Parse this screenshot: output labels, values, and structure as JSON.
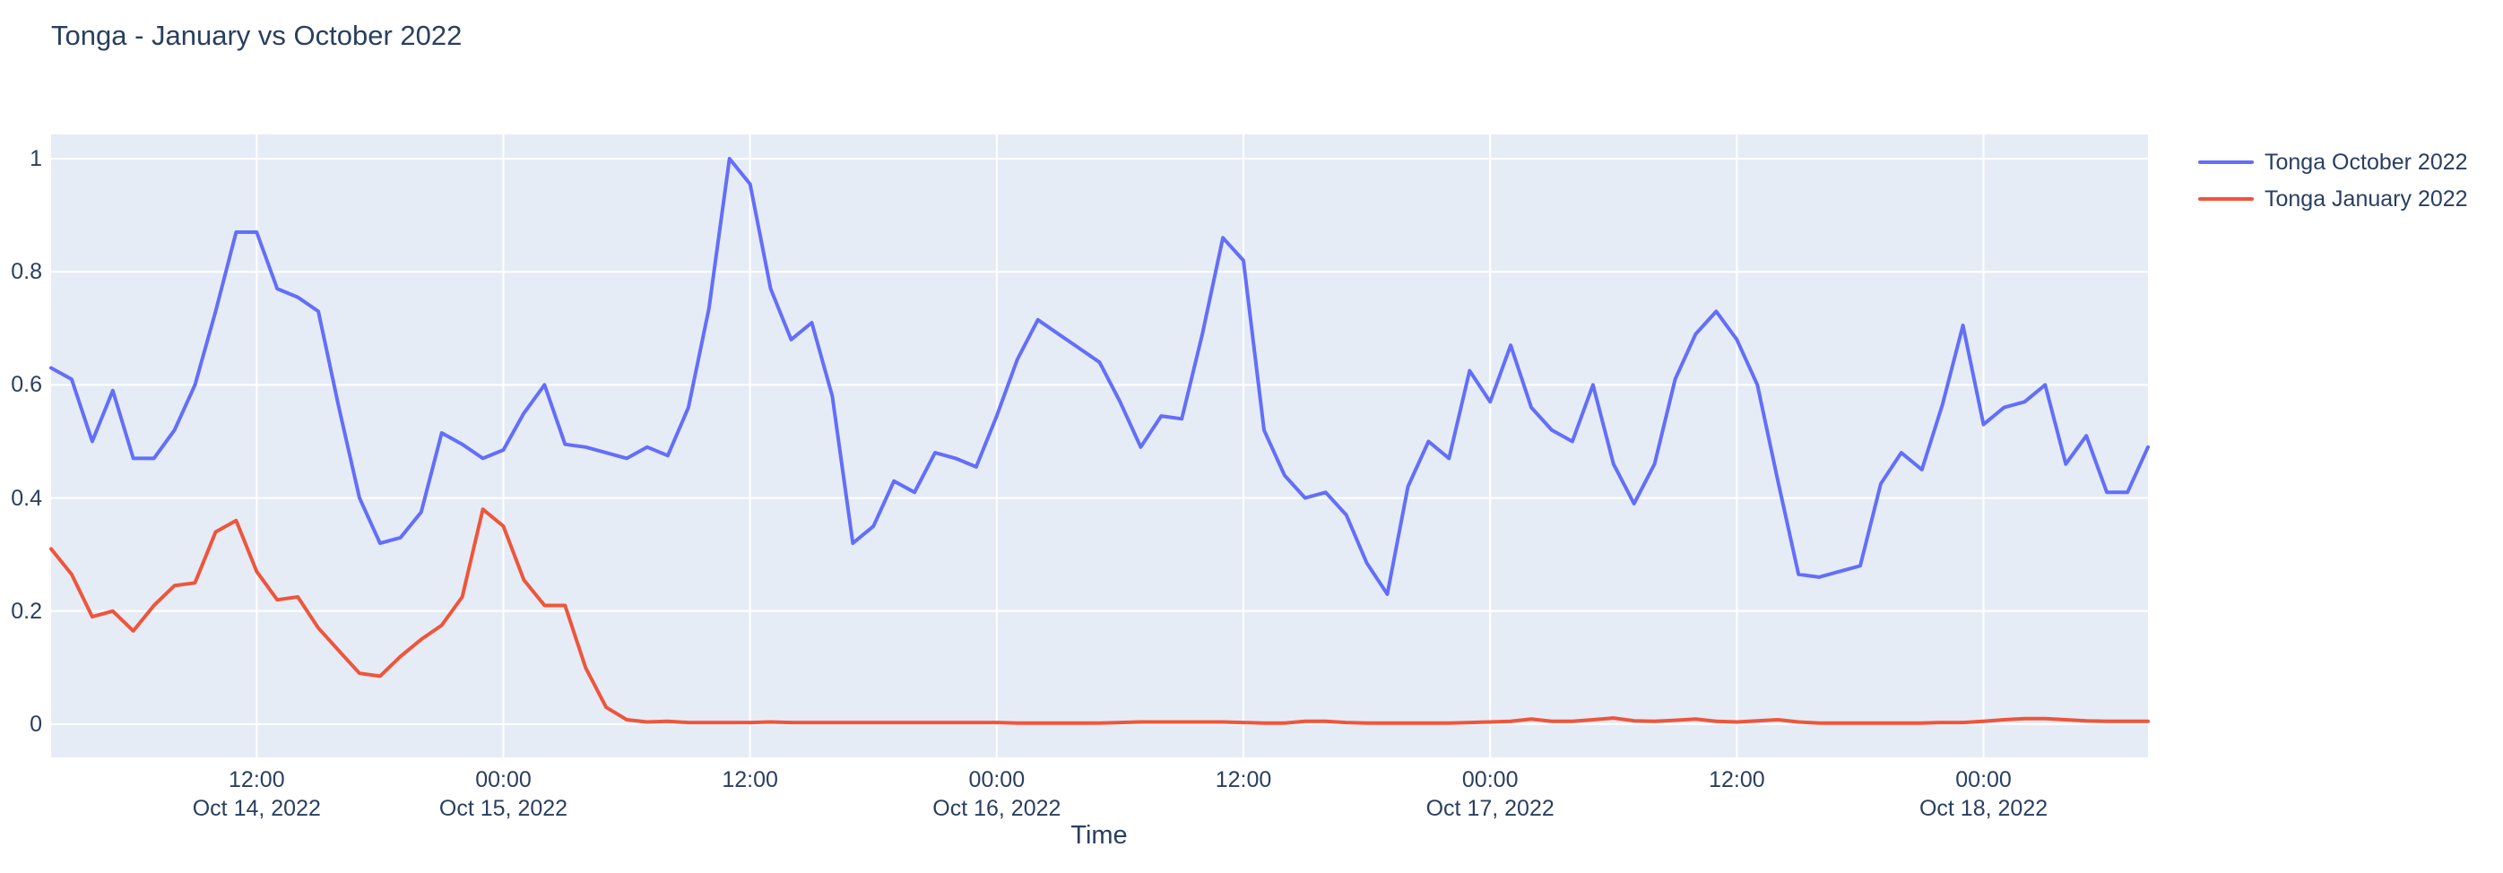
{
  "title": "Tonga - January vs October 2022",
  "axes": {
    "x": {
      "title": "Time",
      "ticks": [
        {
          "hour_offset": 10,
          "time": "12:00",
          "date": "Oct 14, 2022"
        },
        {
          "hour_offset": 22,
          "time": "00:00",
          "date": "Oct 15, 2022"
        },
        {
          "hour_offset": 34,
          "time": "12:00",
          "date": ""
        },
        {
          "hour_offset": 46,
          "time": "00:00",
          "date": "Oct 16, 2022"
        },
        {
          "hour_offset": 58,
          "time": "12:00",
          "date": ""
        },
        {
          "hour_offset": 70,
          "time": "00:00",
          "date": "Oct 17, 2022"
        },
        {
          "hour_offset": 82,
          "time": "12:00",
          "date": ""
        },
        {
          "hour_offset": 94,
          "time": "00:00",
          "date": "Oct 18, 2022"
        }
      ]
    },
    "y": {
      "ticks": [
        {
          "value": 0,
          "label": "0"
        },
        {
          "value": 0.2,
          "label": "0.2"
        },
        {
          "value": 0.4,
          "label": "0.4"
        },
        {
          "value": 0.6,
          "label": "0.6"
        },
        {
          "value": 0.8,
          "label": "0.8"
        },
        {
          "value": 1,
          "label": "1"
        }
      ]
    }
  },
  "legend": [
    {
      "label": "Tonga October 2022",
      "color": "#636EFA"
    },
    {
      "label": "Tonga January 2022",
      "color": "#EF553B"
    }
  ],
  "colors": {
    "plot_background": "#E5ECF6",
    "gridline": "#FFFFFF",
    "text": "#2a3f5f",
    "series_october": "#636EFA",
    "series_january": "#EF553B"
  },
  "chart_data": {
    "type": "line",
    "title": "Tonga - January vs October 2022",
    "xlabel": "Time",
    "ylabel": "",
    "x_start": "2022-10-14 02:00",
    "x_end": "2022-10-18 08:00",
    "x_interval_hours": 1,
    "x_total_hours": 102,
    "ylim": [
      -0.059,
      1.043
    ],
    "grid": true,
    "legend_position": "right-top-outside",
    "series": [
      {
        "name": "Tonga October 2022",
        "color": "#636EFA",
        "values": [
          0.63,
          0.61,
          0.5,
          0.59,
          0.47,
          0.47,
          0.52,
          0.6,
          0.73,
          0.87,
          0.87,
          0.77,
          0.755,
          0.73,
          0.56,
          0.4,
          0.32,
          0.33,
          0.375,
          0.515,
          0.495,
          0.47,
          0.485,
          0.55,
          0.6,
          0.495,
          0.49,
          0.48,
          0.47,
          0.49,
          0.475,
          0.56,
          0.735,
          1.0,
          0.955,
          0.77,
          0.68,
          0.71,
          0.58,
          0.32,
          0.35,
          0.43,
          0.41,
          0.48,
          0.47,
          0.455,
          0.545,
          0.645,
          0.715,
          0.69,
          0.665,
          0.64,
          0.57,
          0.49,
          0.545,
          0.54,
          0.69,
          0.86,
          0.82,
          0.52,
          0.44,
          0.4,
          0.41,
          0.37,
          0.285,
          0.23,
          0.42,
          0.5,
          0.47,
          0.625,
          0.57,
          0.67,
          0.56,
          0.52,
          0.5,
          0.6,
          0.46,
          0.39,
          0.46,
          0.61,
          0.69,
          0.73,
          0.68,
          0.6,
          0.43,
          0.265,
          0.26,
          0.27,
          0.28,
          0.425,
          0.48,
          0.45,
          0.565,
          0.705,
          0.53,
          0.56,
          0.57,
          0.6,
          0.46,
          0.51,
          0.41,
          0.41,
          0.49
        ]
      },
      {
        "name": "Tonga January 2022",
        "color": "#EF553B",
        "values": [
          0.31,
          0.265,
          0.19,
          0.2,
          0.165,
          0.21,
          0.245,
          0.25,
          0.34,
          0.36,
          0.27,
          0.22,
          0.225,
          0.17,
          0.13,
          0.09,
          0.085,
          0.12,
          0.15,
          0.175,
          0.225,
          0.38,
          0.35,
          0.255,
          0.21,
          0.21,
          0.1,
          0.03,
          0.008,
          0.004,
          0.005,
          0.003,
          0.003,
          0.003,
          0.003,
          0.004,
          0.003,
          0.003,
          0.003,
          0.003,
          0.003,
          0.003,
          0.003,
          0.003,
          0.003,
          0.003,
          0.003,
          0.002,
          0.002,
          0.002,
          0.002,
          0.002,
          0.003,
          0.004,
          0.004,
          0.004,
          0.004,
          0.004,
          0.003,
          0.002,
          0.002,
          0.005,
          0.005,
          0.003,
          0.002,
          0.002,
          0.002,
          0.002,
          0.002,
          0.003,
          0.004,
          0.005,
          0.009,
          0.005,
          0.005,
          0.008,
          0.011,
          0.006,
          0.005,
          0.007,
          0.009,
          0.005,
          0.004,
          0.006,
          0.008,
          0.004,
          0.002,
          0.002,
          0.002,
          0.002,
          0.002,
          0.002,
          0.003,
          0.003,
          0.005,
          0.008,
          0.01,
          0.01,
          0.008,
          0.006,
          0.005,
          0.005,
          0.005
        ]
      }
    ]
  }
}
